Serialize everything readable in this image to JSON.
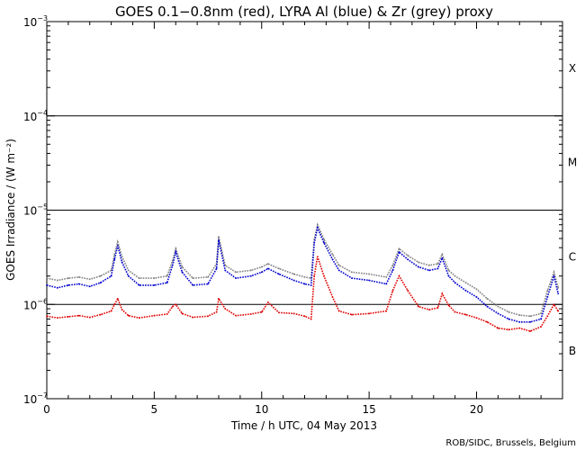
{
  "chart_data": {
    "type": "line",
    "title": "GOES 0.1−0.8nm (red), LYRA Al (blue) & Zr (grey) proxy",
    "xlabel": "Time / h UTC, 04 May 2013",
    "ylabel": "GOES Irradiance / (W m⁻²)",
    "credit": "ROB/SIDC, Brussels, Belgium",
    "xlim": [
      0,
      24
    ],
    "ylim": [
      1e-07,
      0.001
    ],
    "yscale": "log",
    "x_ticks": [
      0,
      5,
      10,
      15,
      20
    ],
    "x_tick_labels": [
      "0",
      "5",
      "10",
      "15",
      "20"
    ],
    "y_tick_labels": [
      {
        "value": 0.001,
        "base": "10",
        "exp": "−3"
      },
      {
        "value": 0.0001,
        "base": "10",
        "exp": "−4"
      },
      {
        "value": 1e-05,
        "base": "10",
        "exp": "−5"
      },
      {
        "value": 1e-06,
        "base": "10",
        "exp": "−6"
      },
      {
        "value": 1e-07,
        "base": "10",
        "exp": "−7"
      }
    ],
    "flare_class_lines": [
      0.0001,
      1e-05,
      1e-06
    ],
    "flare_classes": [
      {
        "label": "X",
        "value": 0.00032
      },
      {
        "label": "M",
        "value": 3.2e-05
      },
      {
        "label": "C",
        "value": 3.2e-06
      },
      {
        "label": "B",
        "value": 3.2e-07
      }
    ],
    "colors": {
      "goes": "#e00000",
      "al": "#0000d0",
      "zr": "#808080"
    },
    "series": [
      {
        "name": "GOES 0.1-0.8nm",
        "color": "#e00000",
        "x": [
          0.0,
          0.5,
          1.0,
          1.5,
          2.0,
          2.5,
          3.0,
          3.15,
          3.3,
          3.5,
          3.8,
          4.3,
          5.0,
          5.6,
          5.85,
          6.0,
          6.3,
          6.8,
          7.5,
          7.9,
          8.0,
          8.3,
          8.8,
          9.5,
          10.0,
          10.3,
          10.8,
          11.5,
          12.0,
          12.3,
          12.45,
          12.6,
          12.9,
          13.3,
          13.6,
          14.2,
          15.0,
          15.8,
          16.1,
          16.4,
          16.8,
          17.3,
          17.8,
          18.2,
          18.4,
          18.7,
          19.0,
          19.5,
          20.0,
          20.5,
          21.0,
          21.5,
          22.0,
          22.5,
          23.0,
          23.3,
          23.6,
          23.8
        ],
        "values": [
          7.5e-07,
          7.2e-07,
          7.4e-07,
          7.6e-07,
          7.3e-07,
          7.8e-07,
          8.5e-07,
          1e-06,
          1.15e-06,
          8.8e-07,
          7.6e-07,
          7.2e-07,
          7.6e-07,
          7.9e-07,
          9.5e-07,
          1e-06,
          8e-07,
          7.3e-07,
          7.5e-07,
          8.3e-07,
          1.15e-06,
          9e-07,
          7.6e-07,
          7.9e-07,
          8.3e-07,
          1.05e-06,
          8.2e-07,
          8e-07,
          7.5e-07,
          7e-07,
          2e-06,
          3.2e-06,
          2e-06,
          1.2e-06,
          8.5e-07,
          7.8e-07,
          8e-07,
          8.5e-07,
          1.4e-06,
          2e-06,
          1.4e-06,
          9.5e-07,
          8.8e-07,
          9.2e-07,
          1.3e-06,
          9.8e-07,
          8.3e-07,
          7.8e-07,
          7.2e-07,
          6.5e-07,
          5.6e-07,
          5.4e-07,
          5.6e-07,
          5.2e-07,
          5.8e-07,
          7.5e-07,
          1e-06,
          8.5e-07
        ]
      },
      {
        "name": "LYRA Al proxy",
        "color": "#0000d0",
        "x": [
          0.0,
          0.5,
          1.0,
          1.5,
          2.0,
          2.5,
          3.0,
          3.15,
          3.3,
          3.5,
          3.8,
          4.3,
          5.0,
          5.6,
          5.85,
          6.0,
          6.3,
          6.8,
          7.5,
          7.9,
          8.0,
          8.3,
          8.8,
          9.5,
          10.0,
          10.3,
          10.8,
          11.5,
          12.0,
          12.3,
          12.45,
          12.6,
          12.9,
          13.3,
          13.6,
          14.2,
          15.0,
          15.8,
          16.1,
          16.4,
          16.8,
          17.3,
          17.8,
          18.2,
          18.4,
          18.7,
          19.0,
          19.5,
          20.0,
          20.5,
          21.0,
          21.5,
          22.0,
          22.5,
          23.0,
          23.3,
          23.6,
          23.8
        ],
        "values": [
          1.6e-06,
          1.5e-06,
          1.6e-06,
          1.65e-06,
          1.55e-06,
          1.7e-06,
          2e-06,
          3e-06,
          4.2e-06,
          2.8e-06,
          2e-06,
          1.6e-06,
          1.6e-06,
          1.7e-06,
          2.6e-06,
          3.6e-06,
          2.2e-06,
          1.6e-06,
          1.65e-06,
          2.4e-06,
          4.8e-06,
          2.3e-06,
          1.9e-06,
          2e-06,
          2.2e-06,
          2.4e-06,
          2.1e-06,
          1.8e-06,
          1.65e-06,
          1.6e-06,
          4.5e-06,
          6.5e-06,
          4.5e-06,
          3e-06,
          2.3e-06,
          1.9e-06,
          1.8e-06,
          1.65e-06,
          2.3e-06,
          3.6e-06,
          3e-06,
          2.5e-06,
          2.3e-06,
          2.4e-06,
          3.1e-06,
          2e-06,
          1.7e-06,
          1.4e-06,
          1.2e-06,
          9.5e-07,
          8e-07,
          7e-07,
          6.5e-07,
          6.5e-07,
          7e-07,
          1.2e-06,
          2e-06,
          1.3e-06
        ]
      },
      {
        "name": "LYRA Zr proxy",
        "color": "#808080",
        "x": [
          0.0,
          0.5,
          1.0,
          1.5,
          2.0,
          2.5,
          3.0,
          3.15,
          3.3,
          3.5,
          3.8,
          4.3,
          5.0,
          5.6,
          5.85,
          6.0,
          6.3,
          6.8,
          7.5,
          7.9,
          8.0,
          8.3,
          8.8,
          9.5,
          10.0,
          10.3,
          10.8,
          11.5,
          12.0,
          12.3,
          12.45,
          12.6,
          12.9,
          13.3,
          13.6,
          14.2,
          15.0,
          15.8,
          16.1,
          16.4,
          16.8,
          17.3,
          17.8,
          18.2,
          18.4,
          18.7,
          19.0,
          19.5,
          20.0,
          20.5,
          21.0,
          21.5,
          22.0,
          22.5,
          23.0,
          23.3,
          23.6,
          23.8
        ],
        "values": [
          1.9e-06,
          1.8e-06,
          1.9e-06,
          1.95e-06,
          1.85e-06,
          2e-06,
          2.3e-06,
          3.4e-06,
          4.6e-06,
          3.2e-06,
          2.3e-06,
          1.9e-06,
          1.9e-06,
          2e-06,
          2.9e-06,
          3.9e-06,
          2.5e-06,
          1.9e-06,
          1.95e-06,
          2.7e-06,
          5.2e-06,
          2.6e-06,
          2.2e-06,
          2.3e-06,
          2.5e-06,
          2.7e-06,
          2.4e-06,
          2.1e-06,
          1.95e-06,
          1.9e-06,
          4.9e-06,
          7e-06,
          4.9e-06,
          3.4e-06,
          2.6e-06,
          2.2e-06,
          2.1e-06,
          1.95e-06,
          2.6e-06,
          3.9e-06,
          3.3e-06,
          2.8e-06,
          2.6e-06,
          2.7e-06,
          3.4e-06,
          2.3e-06,
          2e-06,
          1.7e-06,
          1.45e-06,
          1.15e-06,
          9.5e-07,
          8.3e-07,
          7.7e-07,
          7.5e-07,
          8e-07,
          1.4e-06,
          2.2e-06,
          1.5e-06
        ]
      }
    ]
  }
}
